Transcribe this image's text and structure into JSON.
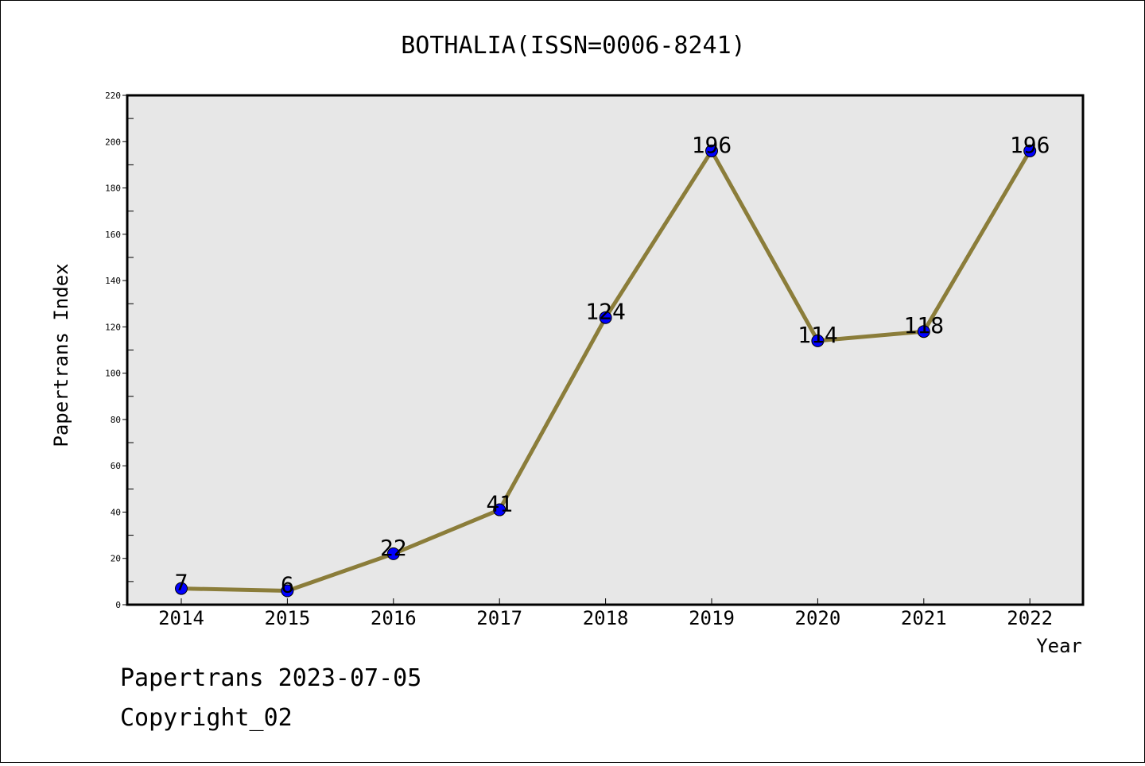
{
  "chart_data": {
    "type": "line",
    "title": "BOTHALIA(ISSN=0006-8241)",
    "xlabel": "Year",
    "ylabel": "Papertrans Index",
    "categories": [
      "2014",
      "2015",
      "2016",
      "2017",
      "2018",
      "2019",
      "2020",
      "2021",
      "2022"
    ],
    "series": [
      {
        "values": [
          7,
          6,
          22,
          41,
          124,
          196,
          114,
          118,
          196
        ]
      }
    ],
    "ylim": [
      0,
      220
    ],
    "yticks": [
      0,
      20,
      40,
      60,
      80,
      100,
      120,
      140,
      160,
      180,
      200,
      220
    ],
    "grid": false,
    "plot_background": "#e7e7e7",
    "line_color": "#8b7d3a",
    "marker_color": "#0000ff"
  },
  "footer": {
    "line1": "Papertrans 2023-07-05",
    "line2": "Copyright_02"
  }
}
